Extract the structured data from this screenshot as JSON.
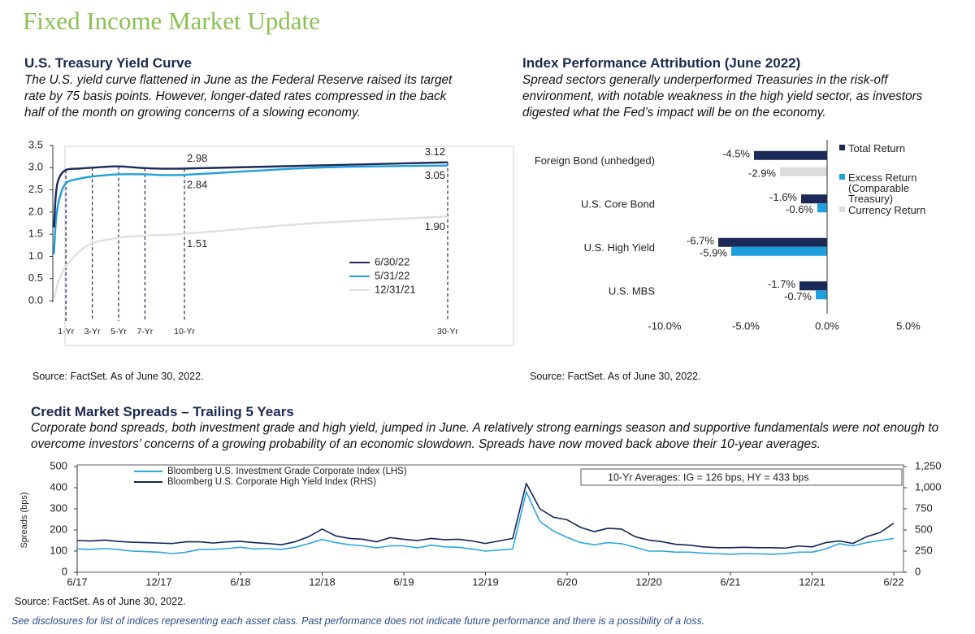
{
  "page": {
    "title": "Fixed Income Market Update",
    "footnote": "See disclosures for list of indices representing each asset class. Past performance does not indicate future performance and there is a possibility of a loss."
  },
  "chart_data": [
    {
      "type": "line",
      "title": "U.S. Treasury Yield Curve",
      "subtitle": "The U.S. yield curve flattened in June as the Federal Reserve raised its target rate by 75 basis points. However, longer-dated rates compressed in the back half of the month on growing concerns of a slowing economy.",
      "source": "Source: FactSet. As of June 30, 2022.",
      "x": [
        0.083,
        0.25,
        0.5,
        1,
        2,
        3,
        5,
        7,
        10,
        20,
        30
      ],
      "xlim": [
        0,
        30
      ],
      "xticks": [
        {
          "value": 1,
          "label": "1-Yr"
        },
        {
          "value": 3,
          "label": "3-Yr"
        },
        {
          "value": 5,
          "label": "5-Yr"
        },
        {
          "value": 7,
          "label": "7-Yr"
        },
        {
          "value": 10,
          "label": "10-Yr"
        },
        {
          "value": 30,
          "label": "30-Yr"
        }
      ],
      "ylim": [
        0,
        3.5
      ],
      "yticks": [
        {
          "value": 0,
          "label": "0.0"
        },
        0.5,
        {
          "value": 1,
          "label": "1.0"
        },
        1.5,
        {
          "value": 2,
          "label": "2.0"
        },
        2.5,
        {
          "value": 3,
          "label": "3.0"
        },
        3.5
      ],
      "legend": "lower right",
      "series": [
        {
          "name": "6/30/22",
          "color": "#1b2a57",
          "values": [
            1.65,
            2.45,
            2.78,
            2.95,
            2.98,
            3.0,
            3.03,
            2.99,
            2.98,
            3.05,
            3.12
          ],
          "value_labels": [
            null,
            null,
            null,
            null,
            null,
            null,
            null,
            null,
            "2.98",
            null,
            "3.12"
          ]
        },
        {
          "name": "5/31/22",
          "color": "#1f9fdc",
          "values": [
            1.05,
            1.85,
            2.3,
            2.65,
            2.75,
            2.8,
            2.85,
            2.85,
            2.84,
            3.0,
            3.05
          ],
          "value_labels": [
            null,
            null,
            null,
            null,
            null,
            null,
            null,
            null,
            "2.84",
            null,
            "3.05"
          ]
        },
        {
          "name": "12/31/21",
          "color": "#e0e0e0",
          "values": [
            0.05,
            0.25,
            0.5,
            0.78,
            1.1,
            1.3,
            1.42,
            1.47,
            1.51,
            1.75,
            1.9
          ],
          "value_labels": [
            null,
            null,
            null,
            null,
            null,
            null,
            null,
            null,
            "1.51",
            null,
            "1.90"
          ]
        }
      ]
    },
    {
      "type": "bar",
      "orientation": "horizontal",
      "title": "Index Performance Attribution (June 2022)",
      "subtitle": "Spread sectors generally underperformed Treasuries in the risk-off environment, with notable weakness in the high yield sector, as investors digested what the Fed’s impact will be on the economy.",
      "source": "Source: FactSet. As of June 30, 2022.",
      "categories": [
        "Foreign Bond (unhedged)",
        "U.S. Core Bond",
        "U.S. High Yield",
        "U.S. MBS"
      ],
      "xlim": [
        -10,
        5
      ],
      "xticks": [
        {
          "value": -10,
          "label": "-10.0%"
        },
        {
          "value": -5,
          "label": "-5.0%"
        },
        {
          "value": 0,
          "label": "0.0%"
        },
        {
          "value": 5,
          "label": "5.0%"
        }
      ],
      "legend": "upper right",
      "series": [
        {
          "name": "Total Return",
          "color": "#1b2a57",
          "values": [
            -4.5,
            -1.6,
            -6.7,
            -1.7
          ],
          "value_labels": [
            "-4.5%",
            "-1.6%",
            "-6.7%",
            "-1.7%"
          ]
        },
        {
          "name": "Excess Return (Comparable Treasury)",
          "color": "#1f9fdc",
          "values": [
            null,
            -0.6,
            -5.9,
            -0.7
          ],
          "value_labels": [
            null,
            "-0.6%",
            "-5.9%",
            "-0.7%"
          ]
        },
        {
          "name": "Currency Return",
          "color": "#dcdcdc",
          "values": [
            -2.9,
            null,
            null,
            null
          ],
          "value_labels": [
            "-2.9%",
            null,
            null,
            null
          ]
        }
      ]
    },
    {
      "type": "line",
      "title": "Credit Market Spreads – Trailing 5 Years",
      "subtitle": "Corporate bond spreads, both investment grade and high yield, jumped in June. A relatively strong earnings season and supportive fundamentals were not enough to overcome investors’ concerns of a growing probability of an economic slowdown. Spreads have now moved back above their 10-year averages.",
      "source": "Source: FactSet. As of June 30, 2022.",
      "ylabel": "Spreads (bps)",
      "annotation": "10-Yr Averages: IG = 126 bps, HY = 433 bps",
      "x": [
        "6/17",
        "7/17",
        "8/17",
        "9/17",
        "10/17",
        "11/17",
        "12/17",
        "1/18",
        "2/18",
        "3/18",
        "4/18",
        "5/18",
        "6/18",
        "7/18",
        "8/18",
        "9/18",
        "10/18",
        "11/18",
        "12/18",
        "1/19",
        "2/19",
        "3/19",
        "4/19",
        "5/19",
        "6/19",
        "7/19",
        "8/19",
        "9/19",
        "10/19",
        "11/19",
        "12/19",
        "1/20",
        "2/20",
        "3/20",
        "4/20",
        "5/20",
        "6/20",
        "7/20",
        "8/20",
        "9/20",
        "10/20",
        "11/20",
        "12/20",
        "1/21",
        "2/21",
        "3/21",
        "4/21",
        "5/21",
        "6/21",
        "7/21",
        "8/21",
        "9/21",
        "10/21",
        "11/21",
        "12/21",
        "1/22",
        "2/22",
        "3/22",
        "4/22",
        "5/22",
        "6/22"
      ],
      "xticks": [
        "6/17",
        "12/17",
        "6/18",
        "12/18",
        "6/19",
        "12/19",
        "6/20",
        "12/20",
        "6/21",
        "12/21",
        "6/22"
      ],
      "ylim": [
        0,
        500
      ],
      "yticks": [
        0,
        100,
        200,
        300,
        400,
        500
      ],
      "y2lim": [
        0,
        1250
      ],
      "y2ticks": [
        0,
        250,
        500,
        750,
        {
          "value": 1000,
          "label": "1,000"
        },
        {
          "value": 1250,
          "label": "1,250"
        }
      ],
      "legend": "upper left",
      "series": [
        {
          "name": "Bloomberg U.S. Investment Grade Corporate Index (LHS)",
          "color": "#29a8e0",
          "values": [
            110,
            108,
            112,
            108,
            100,
            98,
            95,
            88,
            95,
            108,
            108,
            112,
            118,
            110,
            112,
            108,
            118,
            135,
            155,
            140,
            130,
            125,
            115,
            125,
            125,
            115,
            128,
            120,
            118,
            110,
            100,
            105,
            110,
            380,
            240,
            195,
            165,
            140,
            130,
            140,
            135,
            118,
            100,
            100,
            95,
            95,
            90,
            88,
            85,
            88,
            87,
            85,
            88,
            95,
            95,
            110,
            135,
            125,
            140,
            150,
            160
          ]
        },
        {
          "name": "Bloomberg U.S. Corporate High Yield Index (RHS)",
          "color": "#14245a",
          "axis": "y2",
          "values": [
            375,
            370,
            380,
            365,
            355,
            350,
            345,
            340,
            360,
            360,
            345,
            360,
            365,
            350,
            340,
            325,
            360,
            420,
            510,
            430,
            400,
            390,
            360,
            410,
            390,
            375,
            400,
            385,
            390,
            370,
            340,
            370,
            400,
            1050,
            750,
            650,
            620,
            530,
            480,
            520,
            510,
            420,
            380,
            360,
            330,
            320,
            300,
            290,
            290,
            295,
            290,
            290,
            285,
            310,
            300,
            350,
            370,
            340,
            420,
            470,
            580
          ]
        }
      ]
    }
  ]
}
